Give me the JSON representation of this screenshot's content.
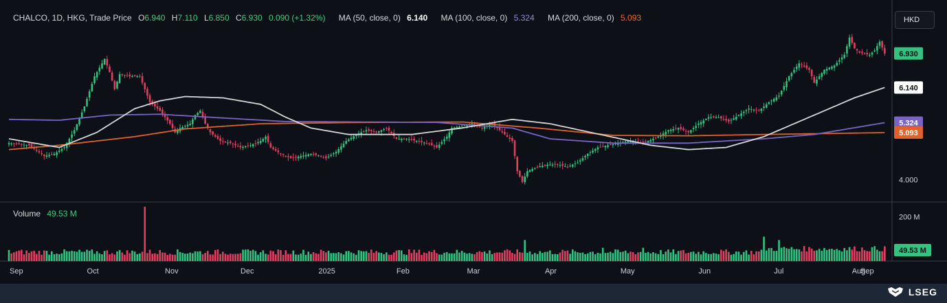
{
  "header": {
    "symbol": "CHALCO, 1D, HKG, Trade Price",
    "o_label": "O",
    "o_val": "6.940",
    "h_label": "H",
    "h_val": "7.110",
    "l_label": "L",
    "l_val": "6.850",
    "c_label": "C",
    "c_val": "6.930",
    "change": "0.090 (+1.32%)",
    "ma50_label": "MA (50, close, 0)",
    "ma50_val": "6.140",
    "ma100_label": "MA (100, close, 0)",
    "ma100_val": "5.324",
    "ma200_label": "MA (200, close, 0)",
    "ma200_val": "5.093"
  },
  "currency_button": "HKD",
  "volume_legend": {
    "label": "Volume",
    "value": "49.53 M"
  },
  "brand": "LSEG",
  "colors": {
    "up": "#33c27f",
    "down": "#e0405f",
    "ma50": "#d7d7d7",
    "ma100": "#7a63c7",
    "ma200": "#e0622a",
    "background": "#0d1017"
  },
  "chart_data": {
    "type": "candlestick",
    "price_axis": {
      "ticks": [
        "4.000",
        "6.930",
        "6.140",
        "5.324",
        "5.093"
      ],
      "ylim": [
        3.5,
        7.5
      ]
    },
    "volume_axis": {
      "ticks": [
        "200 M",
        "49.53 M"
      ],
      "ylim": [
        0,
        260
      ]
    },
    "x_ticks": [
      "Sep",
      "Oct",
      "Nov",
      "Dec",
      "2025",
      "Feb",
      "Mar",
      "Apr",
      "May",
      "Jun",
      "Jul",
      "Aug",
      "Sep"
    ],
    "tags": [
      {
        "text": "6.930",
        "value": 6.93,
        "bg": "#33c27f",
        "fg": "#0d1017"
      },
      {
        "text": "6.140",
        "value": 6.14,
        "bg": "#ffffff",
        "fg": "#0d1017"
      },
      {
        "text": "5.324",
        "value": 5.324,
        "bg": "#7a63c7",
        "fg": "#ffffff"
      },
      {
        "text": "5.093",
        "value": 5.093,
        "bg": "#e0622a",
        "fg": "#ffffff"
      }
    ],
    "anchors": [
      [
        0,
        4.85
      ],
      [
        8,
        4.8
      ],
      [
        14,
        4.55
      ],
      [
        18,
        4.6
      ],
      [
        22,
        4.75
      ],
      [
        26,
        5.15
      ],
      [
        30,
        5.7
      ],
      [
        34,
        6.4
      ],
      [
        36,
        6.6
      ],
      [
        38,
        6.8
      ],
      [
        40,
        6.5
      ],
      [
        42,
        6.1
      ],
      [
        44,
        6.45
      ],
      [
        48,
        6.4
      ],
      [
        52,
        6.4
      ],
      [
        54,
        6.1
      ],
      [
        56,
        5.8
      ],
      [
        60,
        5.6
      ],
      [
        64,
        5.3
      ],
      [
        66,
        5.1
      ],
      [
        68,
        5.2
      ],
      [
        72,
        5.3
      ],
      [
        74,
        5.5
      ],
      [
        76,
        5.6
      ],
      [
        78,
        5.3
      ],
      [
        80,
        5.1
      ],
      [
        84,
        4.9
      ],
      [
        88,
        4.85
      ],
      [
        92,
        4.75
      ],
      [
        96,
        4.8
      ],
      [
        100,
        4.9
      ],
      [
        102,
        5.0
      ],
      [
        104,
        4.75
      ],
      [
        108,
        4.6
      ],
      [
        112,
        4.5
      ],
      [
        116,
        4.55
      ],
      [
        120,
        4.6
      ],
      [
        124,
        4.55
      ],
      [
        126,
        4.5
      ],
      [
        130,
        4.65
      ],
      [
        134,
        4.9
      ],
      [
        138,
        5.05
      ],
      [
        142,
        5.15
      ],
      [
        146,
        5.1
      ],
      [
        150,
        5.2
      ],
      [
        154,
        4.95
      ],
      [
        158,
        4.95
      ],
      [
        162,
        4.9
      ],
      [
        166,
        4.85
      ],
      [
        170,
        4.75
      ],
      [
        174,
        5.0
      ],
      [
        176,
        5.2
      ],
      [
        180,
        5.25
      ],
      [
        184,
        5.3
      ],
      [
        188,
        5.2
      ],
      [
        192,
        5.3
      ],
      [
        196,
        5.1
      ],
      [
        200,
        4.9
      ],
      [
        202,
        4.2
      ],
      [
        204,
        3.95
      ],
      [
        206,
        4.2
      ],
      [
        210,
        4.3
      ],
      [
        214,
        4.35
      ],
      [
        218,
        4.35
      ],
      [
        222,
        4.3
      ],
      [
        226,
        4.4
      ],
      [
        230,
        4.6
      ],
      [
        234,
        4.75
      ],
      [
        238,
        4.8
      ],
      [
        242,
        4.85
      ],
      [
        246,
        4.9
      ],
      [
        250,
        4.85
      ],
      [
        254,
        4.9
      ],
      [
        258,
        5.0
      ],
      [
        262,
        5.15
      ],
      [
        266,
        5.2
      ],
      [
        270,
        5.1
      ],
      [
        274,
        5.3
      ],
      [
        278,
        5.45
      ],
      [
        282,
        5.45
      ],
      [
        286,
        5.35
      ],
      [
        290,
        5.5
      ],
      [
        294,
        5.65
      ],
      [
        298,
        5.6
      ],
      [
        302,
        5.8
      ],
      [
        306,
        5.95
      ],
      [
        310,
        6.4
      ],
      [
        314,
        6.7
      ],
      [
        318,
        6.55
      ],
      [
        320,
        6.25
      ],
      [
        324,
        6.55
      ],
      [
        328,
        6.65
      ],
      [
        332,
        6.9
      ],
      [
        334,
        7.3
      ],
      [
        336,
        7.05
      ],
      [
        338,
        6.95
      ],
      [
        342,
        6.9
      ],
      [
        344,
        7.0
      ],
      [
        346,
        7.2
      ],
      [
        348,
        6.93
      ]
    ],
    "ma50": [
      [
        0,
        4.95
      ],
      [
        20,
        4.75
      ],
      [
        35,
        5.1
      ],
      [
        50,
        5.65
      ],
      [
        60,
        5.83
      ],
      [
        70,
        5.93
      ],
      [
        85,
        5.9
      ],
      [
        100,
        5.75
      ],
      [
        110,
        5.45
      ],
      [
        120,
        5.2
      ],
      [
        135,
        5.05
      ],
      [
        160,
        5.05
      ],
      [
        180,
        5.2
      ],
      [
        200,
        5.4
      ],
      [
        215,
        5.3
      ],
      [
        235,
        5.05
      ],
      [
        255,
        4.8
      ],
      [
        270,
        4.7
      ],
      [
        285,
        4.75
      ],
      [
        300,
        5.0
      ],
      [
        320,
        5.5
      ],
      [
        336,
        5.9
      ],
      [
        348,
        6.14
      ]
    ],
    "ma100": [
      [
        0,
        5.4
      ],
      [
        20,
        5.38
      ],
      [
        40,
        5.5
      ],
      [
        60,
        5.52
      ],
      [
        80,
        5.45
      ],
      [
        110,
        5.35
      ],
      [
        140,
        5.34
      ],
      [
        170,
        5.33
      ],
      [
        200,
        5.2
      ],
      [
        215,
        4.95
      ],
      [
        240,
        4.85
      ],
      [
        270,
        4.85
      ],
      [
        300,
        4.95
      ],
      [
        320,
        5.05
      ],
      [
        348,
        5.324
      ]
    ],
    "ma200": [
      [
        0,
        4.7
      ],
      [
        20,
        4.8
      ],
      [
        50,
        5.0
      ],
      [
        70,
        5.18
      ],
      [
        100,
        5.3
      ],
      [
        140,
        5.33
      ],
      [
        180,
        5.34
      ],
      [
        210,
        5.2
      ],
      [
        240,
        5.03
      ],
      [
        270,
        5.02
      ],
      [
        300,
        5.05
      ],
      [
        348,
        5.093
      ]
    ],
    "volume_spikes": [
      [
        54,
        245
      ],
      [
        205,
        95
      ],
      [
        300,
        110
      ],
      [
        306,
        95
      ],
      [
        252,
        60
      ],
      [
        236,
        60
      ]
    ]
  }
}
